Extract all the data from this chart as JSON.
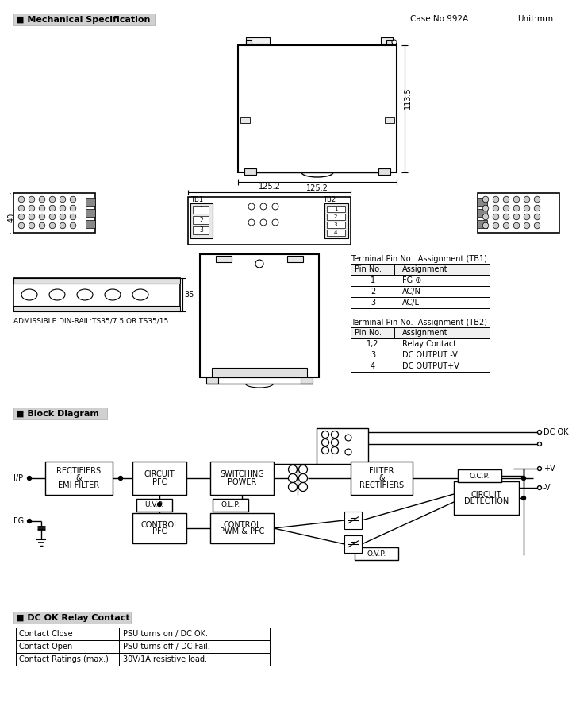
{
  "title_mech": "Mechanical Specification",
  "title_block": "Block Diagram",
  "title_relay": "DC OK Relay Contact",
  "case_no": "Case No.992A",
  "unit": "Unit:mm",
  "dim_width": "125.2",
  "dim_height": "113.5",
  "dim_depth": "40",
  "dim_rail": "35",
  "admissible_rail": "ADMISSIBLE DIN-RAIL:TS35/7.5 OR TS35/15",
  "tb1_title": "Terminal Pin No.  Assignment (TB1)",
  "tb1_headers": [
    "Pin No.",
    "Assignment"
  ],
  "tb1_rows": [
    [
      "1",
      "FG ⊕"
    ],
    [
      "2",
      "AC/N"
    ],
    [
      "3",
      "AC/L"
    ]
  ],
  "tb2_title": "Terminal Pin No.  Assignment (TB2)",
  "tb2_headers": [
    "Pin No.",
    "Assignment"
  ],
  "tb2_rows": [
    [
      "1,2",
      "Relay Contact"
    ],
    [
      "3",
      "DC OUTPUT -V"
    ],
    [
      "4",
      "DC OUTPUT+V"
    ]
  ],
  "relay_rows": [
    [
      "Contact Close",
      "PSU turns on / DC OK."
    ],
    [
      "Contact Open",
      "PSU turns off / DC Fail."
    ],
    [
      "Contact Ratings (max.)",
      "30V/1A resistive load."
    ]
  ],
  "bg_color": "#ffffff"
}
